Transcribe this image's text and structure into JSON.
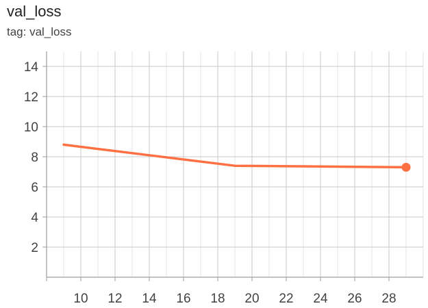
{
  "card": {
    "title": "val_loss",
    "tag_line": "tag: val_loss"
  },
  "chart_data": {
    "type": "line",
    "title": "val_loss",
    "subtitle": "tag: val_loss",
    "xlabel": "",
    "ylabel": "",
    "xlim": [
      8.0,
      30.0
    ],
    "ylim": [
      0,
      15.0
    ],
    "x_ticks": [
      10,
      12,
      14,
      16,
      18,
      20,
      22,
      24,
      26,
      28
    ],
    "y_ticks": [
      2,
      4,
      6,
      8,
      10,
      12,
      14
    ],
    "grid": true,
    "legend": "none",
    "series": [
      {
        "color": "#ff7043",
        "x": [
          9,
          14,
          19,
          29
        ],
        "y": [
          8.8,
          8.1,
          7.4,
          7.3
        ]
      }
    ]
  }
}
